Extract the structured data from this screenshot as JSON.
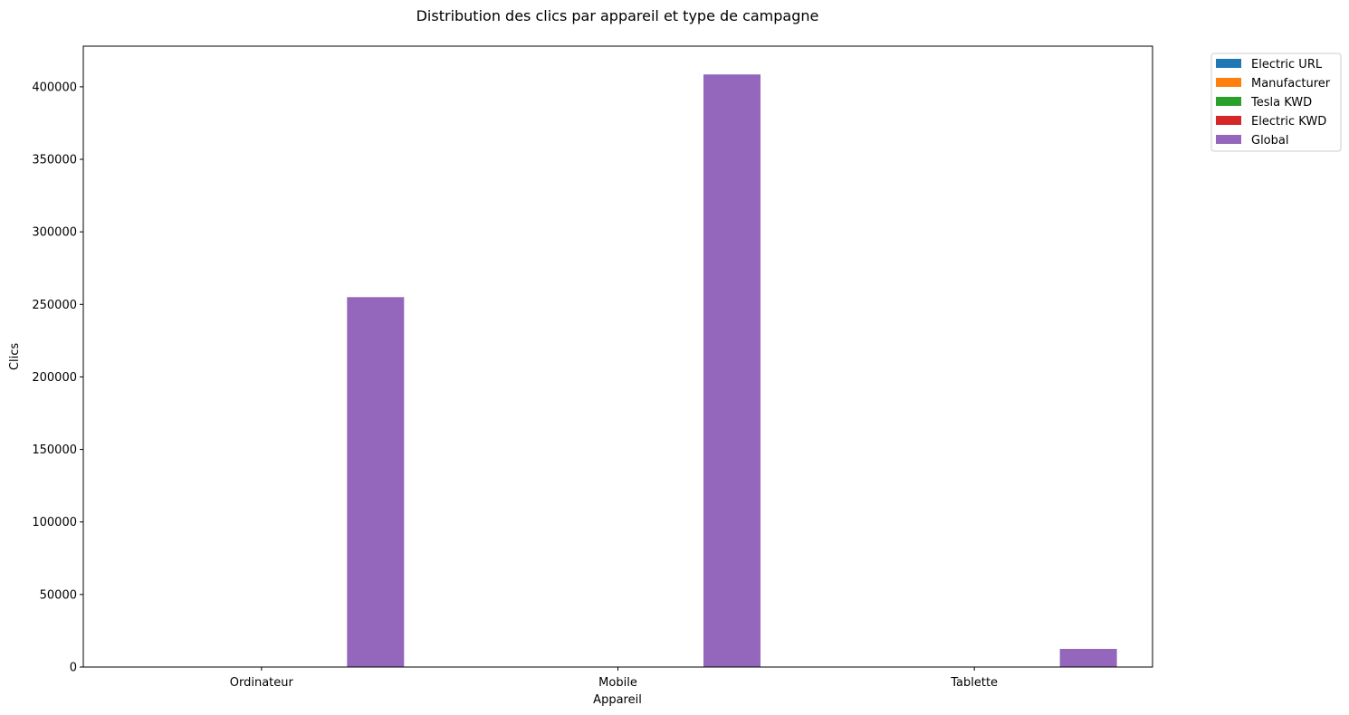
{
  "chart_data": {
    "type": "bar",
    "title": "Distribution des clics par appareil et type de campagne",
    "xlabel": "Appareil",
    "ylabel": "Clics",
    "categories": [
      "Ordinateur",
      "Mobile",
      "Tablette"
    ],
    "series": [
      {
        "name": "Electric URL",
        "color": "#1f77b4",
        "values": [
          0,
          0,
          0
        ]
      },
      {
        "name": "Manufacturer",
        "color": "#ff7f0e",
        "values": [
          0,
          0,
          0
        ]
      },
      {
        "name": "Tesla KWD",
        "color": "#2ca02c",
        "values": [
          0,
          0,
          0
        ]
      },
      {
        "name": "Electric KWD",
        "color": "#d62728",
        "values": [
          0,
          0,
          0
        ]
      },
      {
        "name": "Global",
        "color": "#9467bd",
        "values": [
          255000,
          408500,
          12500
        ]
      }
    ],
    "ylim": [
      0,
      428000
    ],
    "yticks": [
      0,
      50000,
      100000,
      150000,
      200000,
      250000,
      300000,
      350000,
      400000
    ],
    "grid": false,
    "legend_position": "outside top-right"
  }
}
